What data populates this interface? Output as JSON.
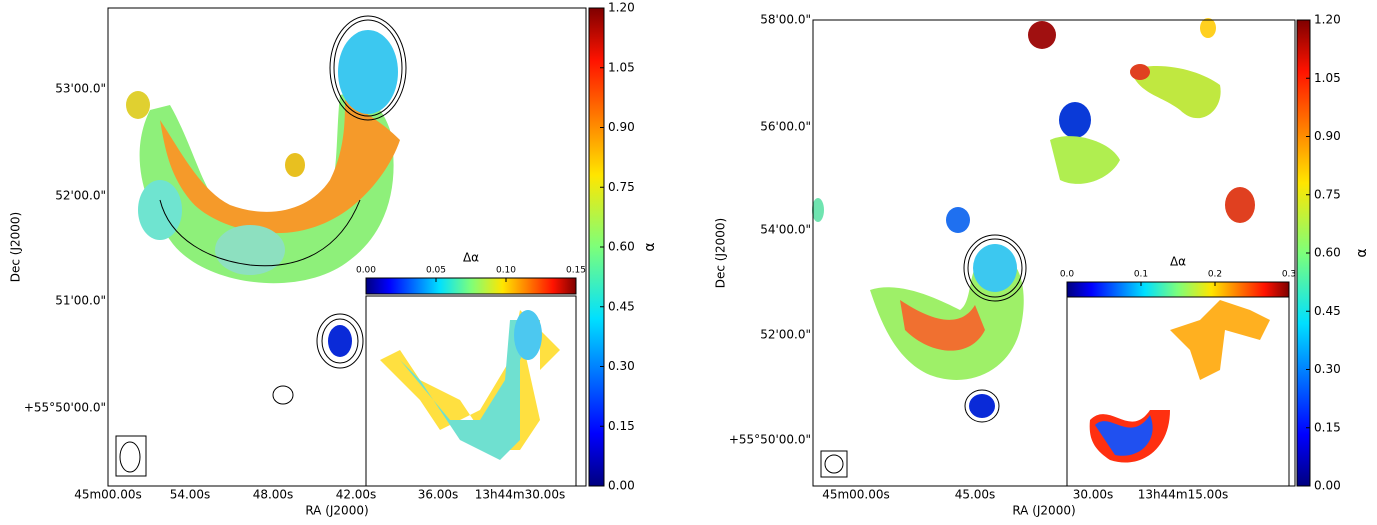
{
  "chart_data": [
    {
      "type": "heatmap",
      "xlabel": "RA (J2000)",
      "ylabel": "Dec (J2000)",
      "xticklabels": [
        "45m00.00s",
        "54.00s",
        "48.00s",
        "42.00s",
        "36.00s",
        "13h44m30.00s"
      ],
      "yticklabels": [
        "53'00.0\"",
        "52'00.0\"",
        "51'00.0\"",
        "+55°50'00.0\""
      ],
      "colorbar": {
        "label": "α",
        "lim": [
          0,
          1.2
        ],
        "ticks": [
          {
            "value": 0,
            "label": "0.00"
          },
          0.15,
          {
            "value": 0.3,
            "label": "0.30"
          },
          0.45,
          {
            "value": 0.6,
            "label": "0.60"
          },
          0.75,
          {
            "value": 0.9,
            "label": "0.90"
          },
          1.05,
          {
            "value": 1.2,
            "label": "1.20"
          }
        ]
      },
      "inset_colorbar": {
        "label": "Δα",
        "lim": [
          0,
          0.15
        ],
        "ticks": [
          {
            "value": 0,
            "label": "0.00"
          },
          0.05,
          {
            "value": 0.1,
            "label": "0.10"
          },
          0.15
        ]
      }
    },
    {
      "type": "heatmap",
      "xlabel": "RA (J2000)",
      "ylabel": "Dec (J2000)",
      "xticklabels": [
        "45m00.00s",
        "45.00s",
        "30.00s",
        "13h44m15.00s"
      ],
      "yticklabels": [
        "58'00.0\"",
        "56'00.0\"",
        "54'00.0\"",
        "52'00.0\"",
        "+55°50'00.0\""
      ],
      "colorbar": {
        "label": "α",
        "lim": [
          0,
          1.2
        ],
        "ticks": [
          {
            "value": 0,
            "label": "0.00"
          },
          0.15,
          {
            "value": 0.3,
            "label": "0.30"
          },
          0.45,
          {
            "value": 0.6,
            "label": "0.60"
          },
          0.75,
          {
            "value": 0.9,
            "label": "0.90"
          },
          1.05,
          {
            "value": 1.2,
            "label": "1.20"
          }
        ]
      },
      "inset_colorbar": {
        "label": "Δα",
        "lim": [
          0,
          0.3
        ],
        "ticks": [
          {
            "value": 0,
            "label": "0.0"
          },
          0.1,
          0.2,
          0.3
        ]
      }
    }
  ]
}
